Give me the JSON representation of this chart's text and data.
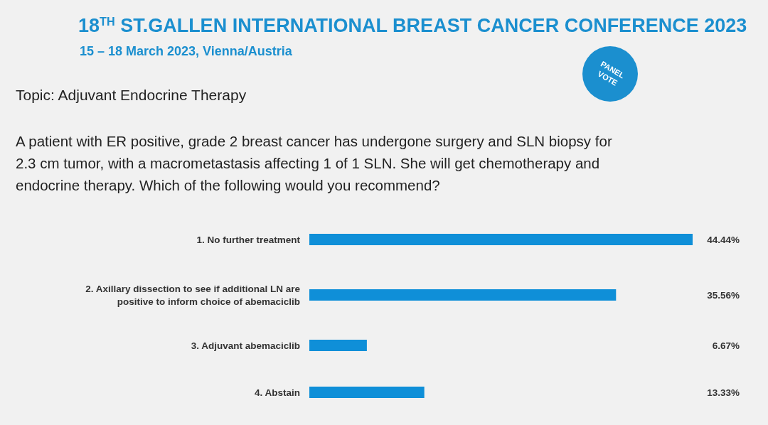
{
  "chart_data": {
    "type": "bar",
    "orientation": "horizontal",
    "title": "18$^{TH}$ ST.GALLEN INTERNATIONAL BREAST CANCER CONFERENCE 2023",
    "subtitle": "15 – 18 March 2023, Vienna/Austria",
    "annotations": [
      "PANEL VOTE",
      "Topic: Adjuvant Endocrine Therapy",
      "A patient with ER positive, grade 2 breast cancer has undergone surgery and SLN biopsy for 2.3 cm tumor, with a macrometastasis affecting 1 of 1 SLN. She will get chemotherapy and endocrine therapy. Which of the following would you recommend?"
    ],
    "categories": [
      "1. No further treatment",
      "2. Axillary dissection to see if additional LN are positive to inform choice of abemaciclib",
      "3. Adjuvant abemaciclib",
      "4. Abstain"
    ],
    "values": [
      44.44,
      35.56,
      6.67,
      13.33
    ],
    "value_labels": [
      "44.44%",
      "35.56%",
      "6.67%",
      "13.33%"
    ],
    "color": "#0f8fd8",
    "xlim": [
      0,
      44.44
    ]
  }
}
